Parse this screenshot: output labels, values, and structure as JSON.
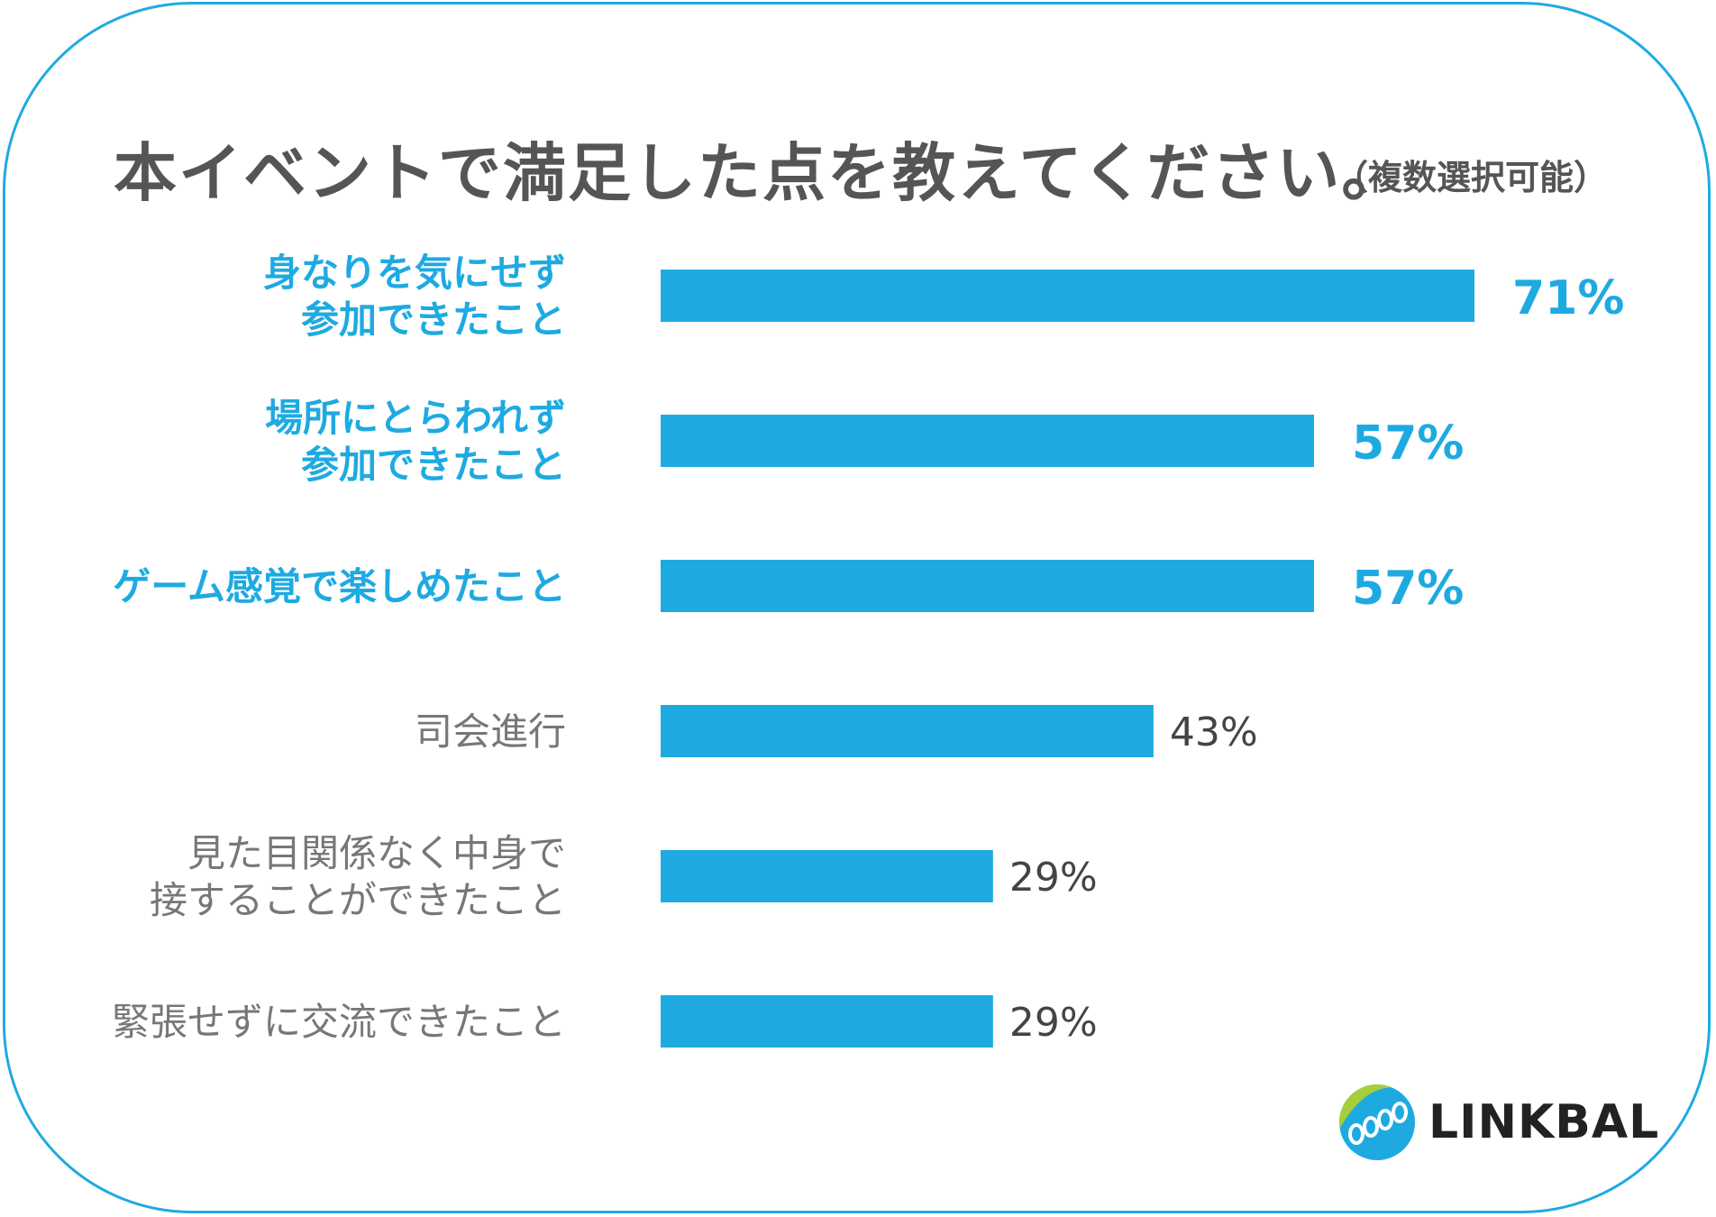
{
  "header": {
    "title": "本イベントで満足した点を教えてください。",
    "subtitle": "（複数選択可能）"
  },
  "brand": {
    "name": "LINKBAL",
    "accent": "#1EAAE1",
    "highlight_label_color": "#1EAAE1",
    "normal_label_color": "#777777",
    "normal_value_color": "#444444"
  },
  "chart_data": {
    "type": "bar",
    "orientation": "horizontal",
    "title": "本イベントで満足した点を教えてください。",
    "unit": "%",
    "xlim": [
      0,
      71
    ],
    "grid": false,
    "categories": [
      [
        "身なりを気にせず",
        "参加できたこと"
      ],
      [
        "場所にとらわれず",
        "参加できたこと"
      ],
      [
        "ゲーム感覚で楽しめたこと"
      ],
      [
        "司会進行"
      ],
      [
        "見た目関係なく中身で",
        "接することができたこと"
      ],
      [
        "緊張せずに交流できたこと"
      ]
    ],
    "values": [
      71,
      57,
      57,
      43,
      29,
      29
    ],
    "value_labels": [
      "71%",
      "57%",
      "57%",
      "43%",
      "29%",
      "29%"
    ],
    "highlighted": [
      true,
      true,
      true,
      false,
      false,
      false
    ]
  }
}
